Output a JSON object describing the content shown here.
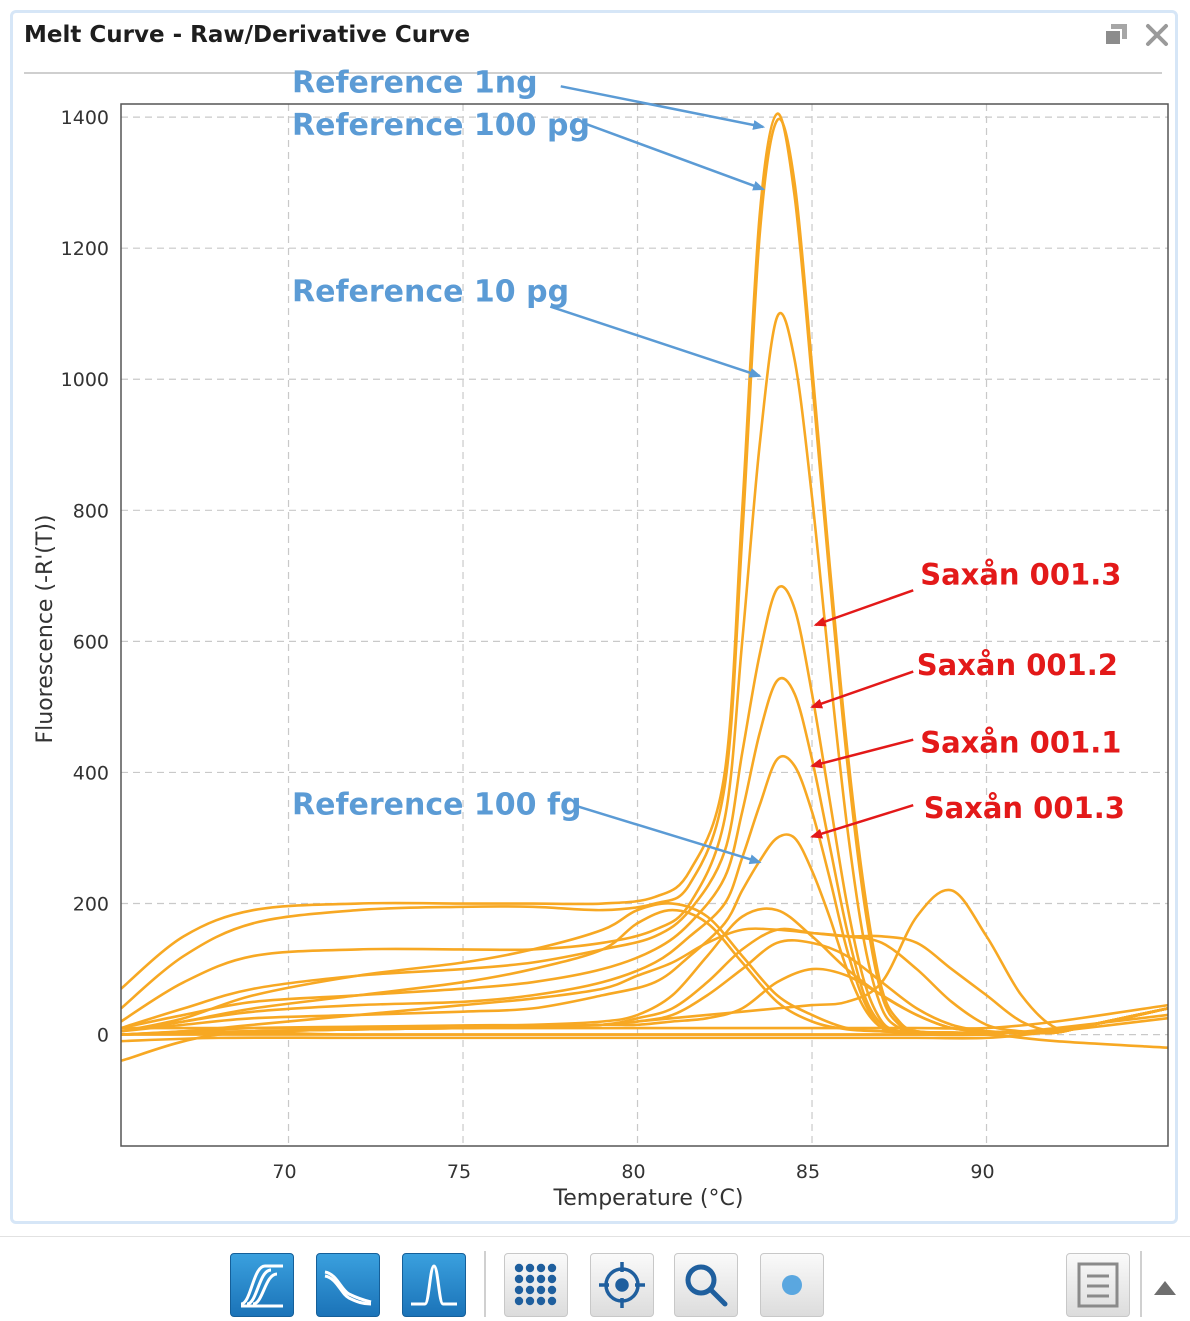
{
  "window": {
    "title": "Melt Curve - Raw/Derivative Curve",
    "restore_icon": "restore-window-icon",
    "close_icon": "close-icon"
  },
  "toolbar": {
    "buttons": [
      {
        "icon": "raw-curve-icon",
        "active": true
      },
      {
        "icon": "normalized-curve-icon",
        "active": true
      },
      {
        "icon": "derivative-peak-icon",
        "active": true
      },
      {
        "icon": "well-grid-icon",
        "active": false
      },
      {
        "icon": "target-locate-icon",
        "active": false
      },
      {
        "icon": "zoom-icon",
        "active": false
      },
      {
        "icon": "dot-icon",
        "active": false
      },
      {
        "icon": "export-icon",
        "active": false
      },
      {
        "icon": "collapse-up-icon",
        "active": false
      }
    ]
  },
  "chart_data": {
    "type": "line",
    "title": "",
    "xlabel": "Temperature (°C)",
    "ylabel": "Fluorescence (-R'(T))",
    "xlim": [
      65.2,
      95.2
    ],
    "ylim": [
      -170,
      1420
    ],
    "xticks": [
      70,
      75,
      80,
      85,
      90
    ],
    "yticks": [
      0,
      200,
      400,
      600,
      800,
      1000,
      1200,
      1400
    ],
    "grid": true,
    "line_color": "#f7a823",
    "annotation_colors": {
      "reference": "#5b9bd5",
      "sample": "#e31919"
    },
    "series": [
      {
        "x": [
          65.2,
          67,
          69,
          72,
          75,
          77,
          79,
          80.5,
          81.5,
          82.5,
          83,
          83.5,
          84,
          84.5,
          85,
          85.5,
          86,
          86.5,
          87,
          87.5,
          88,
          89,
          91,
          93,
          95.2
        ],
        "y": [
          70,
          150,
          190,
          200,
          200,
          200,
          200,
          210,
          250,
          400,
          800,
          1250,
          1405,
          1280,
          1000,
          700,
          420,
          200,
          60,
          15,
          5,
          3,
          3,
          15,
          40
        ]
      },
      {
        "x": [
          65.2,
          67,
          69,
          72,
          75,
          77,
          79,
          80.5,
          81.5,
          82.5,
          83,
          83.5,
          84,
          84.5,
          85,
          85.5,
          86,
          86.5,
          87,
          87.5,
          88,
          89,
          91,
          93,
          95.2
        ],
        "y": [
          40,
          120,
          170,
          190,
          195,
          195,
          190,
          200,
          230,
          380,
          760,
          1220,
          1395,
          1300,
          1020,
          720,
          440,
          220,
          70,
          20,
          5,
          3,
          3,
          15,
          40
        ]
      },
      {
        "x": [
          65.2,
          67,
          69,
          72,
          75,
          77,
          79,
          80.5,
          81.5,
          82.5,
          83,
          83.5,
          84,
          84.5,
          85,
          85.5,
          86,
          86.5,
          87,
          87.5,
          88,
          89,
          91,
          93,
          95.2
        ],
        "y": [
          20,
          80,
          120,
          130,
          130,
          130,
          140,
          160,
          200,
          330,
          600,
          900,
          1095,
          1030,
          820,
          560,
          320,
          140,
          40,
          10,
          3,
          3,
          3,
          15,
          40
        ]
      },
      {
        "x": [
          65.2,
          67,
          69,
          72,
          75,
          77,
          79,
          80.5,
          81.5,
          82.5,
          83,
          83.5,
          84,
          84.5,
          85,
          85.5,
          86,
          86.5,
          87,
          87.5,
          88,
          89,
          91,
          93,
          95.2
        ],
        "y": [
          10,
          40,
          70,
          90,
          100,
          110,
          130,
          150,
          190,
          280,
          430,
          580,
          680,
          650,
          520,
          360,
          200,
          80,
          20,
          5,
          3,
          3,
          3,
          15,
          40
        ]
      },
      {
        "x": [
          65.2,
          67,
          69,
          72,
          75,
          77,
          79,
          80.5,
          81.5,
          82.5,
          83,
          83.5,
          84,
          84.5,
          85,
          85.5,
          86,
          86.5,
          87,
          87.5,
          88,
          89,
          91,
          93,
          95.2
        ],
        "y": [
          10,
          30,
          50,
          60,
          70,
          80,
          100,
          130,
          170,
          240,
          340,
          460,
          540,
          520,
          420,
          290,
          160,
          60,
          15,
          5,
          3,
          3,
          3,
          15,
          40
        ]
      },
      {
        "x": [
          65.2,
          67,
          69,
          72,
          75,
          77,
          79,
          80.5,
          81.5,
          82.5,
          83,
          83.5,
          84,
          84.5,
          85,
          85.5,
          86,
          86.5,
          87,
          87.5,
          88,
          89,
          91,
          93,
          95.2
        ],
        "y": [
          5,
          20,
          35,
          45,
          50,
          60,
          80,
          110,
          150,
          200,
          270,
          350,
          420,
          410,
          340,
          240,
          130,
          50,
          10,
          5,
          3,
          3,
          3,
          15,
          40
        ]
      },
      {
        "x": [
          65.2,
          67,
          69,
          72,
          75,
          77,
          79,
          80.5,
          81.5,
          82.5,
          83,
          83.5,
          84,
          84.5,
          85,
          85.5,
          86,
          86.5,
          87,
          87.5,
          88,
          89,
          91,
          93,
          95.2
        ],
        "y": [
          5,
          15,
          25,
          30,
          35,
          40,
          60,
          80,
          120,
          170,
          220,
          265,
          300,
          300,
          250,
          180,
          100,
          40,
          10,
          3,
          3,
          3,
          3,
          15,
          40
        ]
      },
      {
        "x": [
          65.2,
          67,
          69,
          72,
          75,
          77,
          79,
          80,
          81,
          82,
          83,
          84,
          85,
          86,
          87,
          88,
          89,
          90,
          91,
          92,
          93,
          95.2
        ],
        "y": [
          0,
          5,
          10,
          12,
          14,
          15,
          20,
          30,
          60,
          120,
          180,
          190,
          150,
          100,
          60,
          30,
          10,
          5,
          3,
          3,
          15,
          40
        ]
      },
      {
        "x": [
          65.2,
          67,
          69,
          72,
          75,
          77,
          79,
          80,
          81,
          82,
          83,
          84,
          85,
          86,
          87,
          88,
          89,
          90,
          91,
          92,
          93,
          95.2
        ],
        "y": [
          0,
          3,
          5,
          8,
          10,
          12,
          15,
          25,
          40,
          80,
          130,
          160,
          155,
          150,
          140,
          100,
          50,
          15,
          5,
          3,
          15,
          40
        ]
      },
      {
        "x": [
          65.2,
          67,
          69,
          72,
          75,
          77,
          79,
          80,
          81,
          82,
          83,
          84,
          85,
          86,
          87,
          88,
          89,
          90,
          91,
          92,
          93,
          95.2
        ],
        "y": [
          0,
          3,
          5,
          8,
          10,
          12,
          15,
          20,
          30,
          60,
          100,
          140,
          140,
          120,
          80,
          40,
          15,
          5,
          3,
          3,
          15,
          40
        ]
      },
      {
        "x": [
          65.2,
          67,
          69,
          72,
          75,
          77,
          79,
          80,
          81,
          82,
          83,
          84,
          85,
          86,
          87,
          88,
          89,
          90,
          91,
          92,
          93,
          95.2
        ],
        "y": [
          0,
          5,
          15,
          30,
          45,
          55,
          70,
          90,
          110,
          140,
          160,
          160,
          155,
          150,
          150,
          140,
          100,
          60,
          20,
          5,
          15,
          40
        ]
      },
      {
        "x": [
          65.2,
          67,
          69,
          72,
          75,
          77,
          79,
          80,
          81,
          82,
          83,
          84,
          85,
          86,
          87,
          88,
          89,
          90,
          91,
          92,
          93,
          95.2
        ],
        "y": [
          0,
          3,
          5,
          8,
          10,
          12,
          15,
          20,
          25,
          30,
          35,
          40,
          45,
          50,
          80,
          180,
          220,
          150,
          60,
          10,
          15,
          40
        ]
      },
      {
        "x": [
          65.2,
          67,
          69,
          72,
          75,
          77,
          79,
          80,
          81,
          82,
          83,
          84,
          85,
          86,
          87,
          88,
          89,
          90,
          91,
          92,
          93,
          95.2
        ],
        "y": [
          0,
          3,
          5,
          8,
          10,
          12,
          15,
          15,
          20,
          25,
          40,
          80,
          100,
          90,
          60,
          30,
          10,
          5,
          3,
          3,
          15,
          40
        ]
      },
      {
        "x": [
          65.2,
          67,
          69,
          72,
          75,
          77,
          79,
          80,
          81,
          82,
          83,
          84,
          85,
          86,
          87,
          88,
          89,
          90,
          91,
          92,
          93,
          95.2
        ],
        "y": [
          5,
          25,
          60,
          90,
          110,
          130,
          160,
          190,
          200,
          180,
          120,
          60,
          30,
          10,
          5,
          3,
          3,
          3,
          3,
          3,
          15,
          40
        ]
      },
      {
        "x": [
          65.2,
          67,
          69,
          72,
          75,
          77,
          79,
          80,
          81,
          82,
          83,
          84,
          85,
          86,
          87,
          88,
          89,
          90,
          91,
          92,
          93,
          95.2
        ],
        "y": [
          5,
          20,
          40,
          60,
          80,
          100,
          130,
          170,
          190,
          170,
          110,
          50,
          20,
          8,
          5,
          3,
          3,
          3,
          3,
          3,
          15,
          40
        ]
      },
      {
        "x": [
          65.2,
          68,
          72,
          78,
          83,
          86,
          88,
          90,
          92,
          95.2
        ],
        "y": [
          0,
          0,
          0,
          0,
          0,
          0,
          0,
          0,
          10,
          30
        ]
      },
      {
        "x": [
          65.2,
          68,
          72,
          78,
          83,
          86,
          88,
          90,
          92,
          95.2
        ],
        "y": [
          -10,
          -5,
          -5,
          -5,
          -5,
          -5,
          -5,
          -5,
          5,
          25
        ]
      },
      {
        "x": [
          65.2,
          68,
          72,
          78,
          83,
          86,
          88,
          90,
          92,
          95.2
        ],
        "y": [
          10,
          10,
          10,
          10,
          10,
          10,
          10,
          10,
          20,
          45
        ]
      },
      {
        "x": [
          65.2,
          68,
          72,
          78,
          83,
          86,
          88,
          90,
          92,
          95.2
        ],
        "y": [
          -40,
          0,
          0,
          0,
          0,
          0,
          0,
          0,
          -10,
          -20
        ]
      }
    ],
    "annotations": [
      {
        "text": "Reference 1ng",
        "kind": "reference",
        "label_x": 70.1,
        "label_y": 1453,
        "arrow_from": [
          77.8,
          1447
        ],
        "arrow_to": [
          83.6,
          1385
        ]
      },
      {
        "text": "Reference 100 pg",
        "kind": "reference",
        "label_x": 70.1,
        "label_y": 1388,
        "arrow_from": [
          78.5,
          1390
        ],
        "arrow_to": [
          83.6,
          1290
        ]
      },
      {
        "text": "Reference 10 pg",
        "kind": "reference",
        "label_x": 70.1,
        "label_y": 1134,
        "arrow_from": [
          77.5,
          1111
        ],
        "arrow_to": [
          83.5,
          1005
        ]
      },
      {
        "text": "Reference 100 fg",
        "kind": "reference",
        "label_x": 70.1,
        "label_y": 351,
        "arrow_from": [
          78.3,
          348
        ],
        "arrow_to": [
          83.5,
          263
        ]
      },
      {
        "text": "Saxån 001.3",
        "kind": "sample",
        "label_x": 88.1,
        "label_y": 702,
        "arrow_from": [
          87.9,
          678
        ],
        "arrow_to": [
          85.1,
          625
        ]
      },
      {
        "text": "Saxån 001.2",
        "kind": "sample",
        "label_x": 88.0,
        "label_y": 564,
        "arrow_from": [
          87.9,
          554
        ],
        "arrow_to": [
          85.0,
          500
        ]
      },
      {
        "text": "Saxån 001.1",
        "kind": "sample",
        "label_x": 88.1,
        "label_y": 446,
        "arrow_from": [
          87.9,
          450
        ],
        "arrow_to": [
          85.0,
          410
        ]
      },
      {
        "text": "Saxån 001.3",
        "kind": "sample",
        "label_x": 88.2,
        "label_y": 346,
        "arrow_from": [
          87.9,
          350
        ],
        "arrow_to": [
          85.0,
          302
        ]
      }
    ]
  }
}
